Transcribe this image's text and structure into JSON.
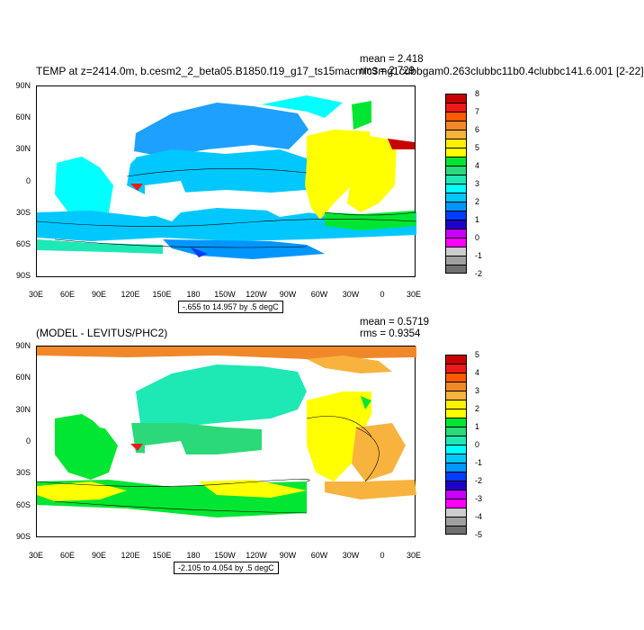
{
  "panel1": {
    "title": "TEMP at z=2414.0m, b.cesm2_2_beta05.B1850.f19_g17_ts15macmic3mg1cubbgam0.263clubbc11b0.4clubbc141.6.001 [2-22]",
    "mean": "mean = 2.418",
    "rms": "rms = 2.729",
    "range": "-.655 to 14.957 by .5 degC",
    "legend_labels": [
      "8",
      "7",
      "6",
      "5",
      "4",
      "3",
      "2",
      "1",
      "0",
      "-1",
      "-2"
    ],
    "legend_colors": [
      "#c80000",
      "#ee1a1a",
      "#ff5a00",
      "#f0882a",
      "#f8b33e",
      "#fff000",
      "#ffff00",
      "#00e632",
      "#2bd97a",
      "#1ee8b4",
      "#00ffff",
      "#00c8ff",
      "#0096ff",
      "#003cff",
      "#1e00c8",
      "#c800ff",
      "#ff00ff",
      "#cccccc",
      "#a0a0a0",
      "#707070"
    ]
  },
  "panel2": {
    "title": "(MODEL - LEVITUS/PHC2)",
    "mean": "mean = 0.5719",
    "rms": "rms = 0.9354",
    "range": "-2.105 to 4.054 by .5 degC",
    "legend_labels": [
      "5",
      "4",
      "3",
      "2",
      "1",
      "0",
      "-1",
      "-2",
      "-3",
      "-4",
      "-5"
    ],
    "legend_colors": [
      "#c80000",
      "#ee1a1a",
      "#ff5a00",
      "#f0882a",
      "#f8b33e",
      "#fff000",
      "#ffff00",
      "#00e632",
      "#2bd97a",
      "#1ee8b4",
      "#00ffff",
      "#00c8ff",
      "#0096ff",
      "#003cff",
      "#1e00c8",
      "#c800ff",
      "#ff00ff",
      "#cccccc",
      "#a0a0a0",
      "#707070"
    ]
  },
  "lat_labels": [
    "90N",
    "60N",
    "30N",
    "0",
    "30S",
    "60S",
    "90S"
  ],
  "lon_labels": [
    "30E",
    "60E",
    "90E",
    "120E",
    "150E",
    "180",
    "150W",
    "120W",
    "90W",
    "60W",
    "30W",
    "0",
    "30E"
  ]
}
